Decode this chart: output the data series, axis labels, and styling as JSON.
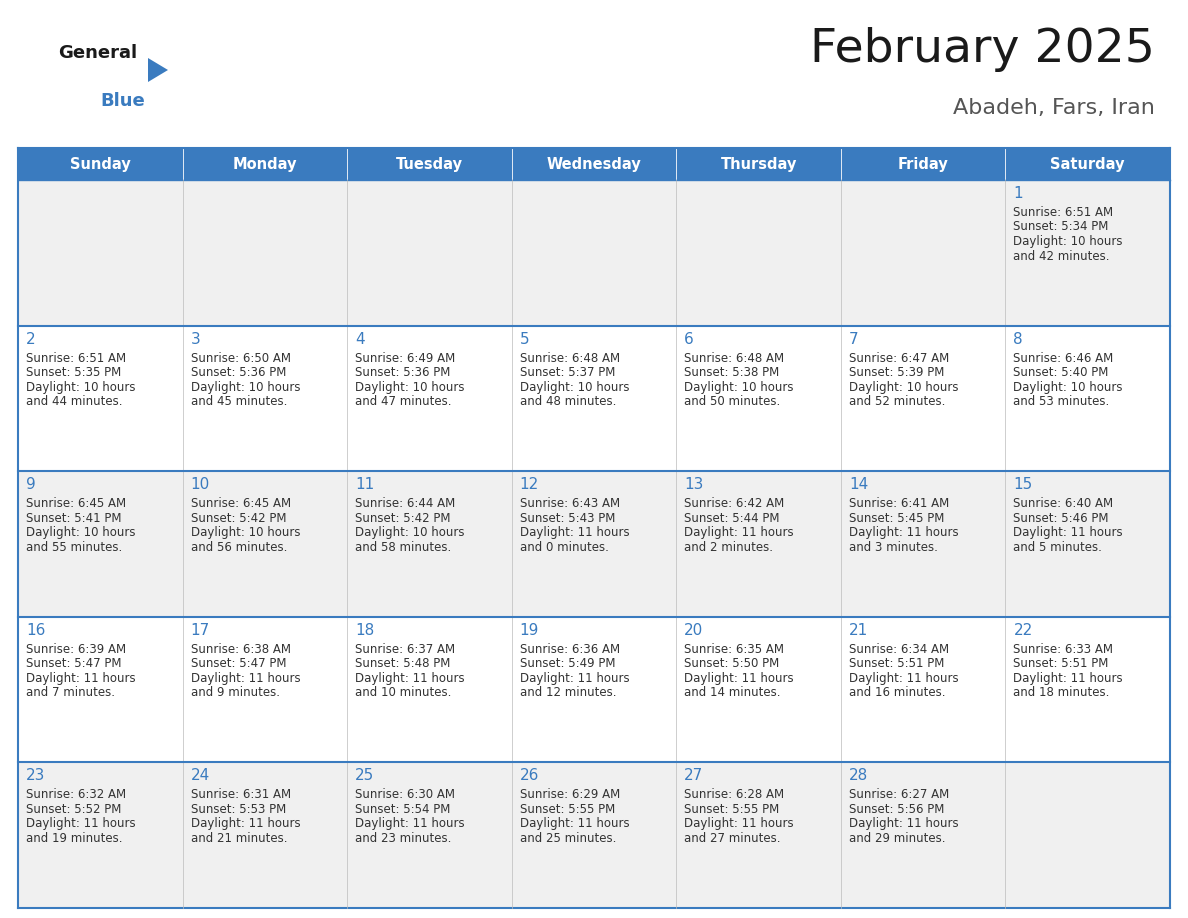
{
  "title": "February 2025",
  "subtitle": "Abadeh, Fars, Iran",
  "header_bg": "#3a7bbf",
  "header_text_color": "#ffffff",
  "cell_bg_odd": "#f0f0f0",
  "cell_bg_even": "#ffffff",
  "border_color_thick": "#3a7bbf",
  "border_color_cell": "#cccccc",
  "day_headers": [
    "Sunday",
    "Monday",
    "Tuesday",
    "Wednesday",
    "Thursday",
    "Friday",
    "Saturday"
  ],
  "title_color": "#1a1a1a",
  "subtitle_color": "#555555",
  "day_number_color": "#3a7bbf",
  "cell_text_color": "#333333",
  "logo_general_color": "#1a1a1a",
  "logo_blue_color": "#3a7bbf",
  "logo_triangle_color": "#3a7bbf",
  "calendar_data": [
    [
      null,
      null,
      null,
      null,
      null,
      null,
      {
        "day": 1,
        "sunrise": "6:51 AM",
        "sunset": "5:34 PM",
        "daylight_line1": "Daylight: 10 hours",
        "daylight_line2": "and 42 minutes."
      }
    ],
    [
      {
        "day": 2,
        "sunrise": "6:51 AM",
        "sunset": "5:35 PM",
        "daylight_line1": "Daylight: 10 hours",
        "daylight_line2": "and 44 minutes."
      },
      {
        "day": 3,
        "sunrise": "6:50 AM",
        "sunset": "5:36 PM",
        "daylight_line1": "Daylight: 10 hours",
        "daylight_line2": "and 45 minutes."
      },
      {
        "day": 4,
        "sunrise": "6:49 AM",
        "sunset": "5:36 PM",
        "daylight_line1": "Daylight: 10 hours",
        "daylight_line2": "and 47 minutes."
      },
      {
        "day": 5,
        "sunrise": "6:48 AM",
        "sunset": "5:37 PM",
        "daylight_line1": "Daylight: 10 hours",
        "daylight_line2": "and 48 minutes."
      },
      {
        "day": 6,
        "sunrise": "6:48 AM",
        "sunset": "5:38 PM",
        "daylight_line1": "Daylight: 10 hours",
        "daylight_line2": "and 50 minutes."
      },
      {
        "day": 7,
        "sunrise": "6:47 AM",
        "sunset": "5:39 PM",
        "daylight_line1": "Daylight: 10 hours",
        "daylight_line2": "and 52 minutes."
      },
      {
        "day": 8,
        "sunrise": "6:46 AM",
        "sunset": "5:40 PM",
        "daylight_line1": "Daylight: 10 hours",
        "daylight_line2": "and 53 minutes."
      }
    ],
    [
      {
        "day": 9,
        "sunrise": "6:45 AM",
        "sunset": "5:41 PM",
        "daylight_line1": "Daylight: 10 hours",
        "daylight_line2": "and 55 minutes."
      },
      {
        "day": 10,
        "sunrise": "6:45 AM",
        "sunset": "5:42 PM",
        "daylight_line1": "Daylight: 10 hours",
        "daylight_line2": "and 56 minutes."
      },
      {
        "day": 11,
        "sunrise": "6:44 AM",
        "sunset": "5:42 PM",
        "daylight_line1": "Daylight: 10 hours",
        "daylight_line2": "and 58 minutes."
      },
      {
        "day": 12,
        "sunrise": "6:43 AM",
        "sunset": "5:43 PM",
        "daylight_line1": "Daylight: 11 hours",
        "daylight_line2": "and 0 minutes."
      },
      {
        "day": 13,
        "sunrise": "6:42 AM",
        "sunset": "5:44 PM",
        "daylight_line1": "Daylight: 11 hours",
        "daylight_line2": "and 2 minutes."
      },
      {
        "day": 14,
        "sunrise": "6:41 AM",
        "sunset": "5:45 PM",
        "daylight_line1": "Daylight: 11 hours",
        "daylight_line2": "and 3 minutes."
      },
      {
        "day": 15,
        "sunrise": "6:40 AM",
        "sunset": "5:46 PM",
        "daylight_line1": "Daylight: 11 hours",
        "daylight_line2": "and 5 minutes."
      }
    ],
    [
      {
        "day": 16,
        "sunrise": "6:39 AM",
        "sunset": "5:47 PM",
        "daylight_line1": "Daylight: 11 hours",
        "daylight_line2": "and 7 minutes."
      },
      {
        "day": 17,
        "sunrise": "6:38 AM",
        "sunset": "5:47 PM",
        "daylight_line1": "Daylight: 11 hours",
        "daylight_line2": "and 9 minutes."
      },
      {
        "day": 18,
        "sunrise": "6:37 AM",
        "sunset": "5:48 PM",
        "daylight_line1": "Daylight: 11 hours",
        "daylight_line2": "and 10 minutes."
      },
      {
        "day": 19,
        "sunrise": "6:36 AM",
        "sunset": "5:49 PM",
        "daylight_line1": "Daylight: 11 hours",
        "daylight_line2": "and 12 minutes."
      },
      {
        "day": 20,
        "sunrise": "6:35 AM",
        "sunset": "5:50 PM",
        "daylight_line1": "Daylight: 11 hours",
        "daylight_line2": "and 14 minutes."
      },
      {
        "day": 21,
        "sunrise": "6:34 AM",
        "sunset": "5:51 PM",
        "daylight_line1": "Daylight: 11 hours",
        "daylight_line2": "and 16 minutes."
      },
      {
        "day": 22,
        "sunrise": "6:33 AM",
        "sunset": "5:51 PM",
        "daylight_line1": "Daylight: 11 hours",
        "daylight_line2": "and 18 minutes."
      }
    ],
    [
      {
        "day": 23,
        "sunrise": "6:32 AM",
        "sunset": "5:52 PM",
        "daylight_line1": "Daylight: 11 hours",
        "daylight_line2": "and 19 minutes."
      },
      {
        "day": 24,
        "sunrise": "6:31 AM",
        "sunset": "5:53 PM",
        "daylight_line1": "Daylight: 11 hours",
        "daylight_line2": "and 21 minutes."
      },
      {
        "day": 25,
        "sunrise": "6:30 AM",
        "sunset": "5:54 PM",
        "daylight_line1": "Daylight: 11 hours",
        "daylight_line2": "and 23 minutes."
      },
      {
        "day": 26,
        "sunrise": "6:29 AM",
        "sunset": "5:55 PM",
        "daylight_line1": "Daylight: 11 hours",
        "daylight_line2": "and 25 minutes."
      },
      {
        "day": 27,
        "sunrise": "6:28 AM",
        "sunset": "5:55 PM",
        "daylight_line1": "Daylight: 11 hours",
        "daylight_line2": "and 27 minutes."
      },
      {
        "day": 28,
        "sunrise": "6:27 AM",
        "sunset": "5:56 PM",
        "daylight_line1": "Daylight: 11 hours",
        "daylight_line2": "and 29 minutes."
      },
      null
    ]
  ]
}
